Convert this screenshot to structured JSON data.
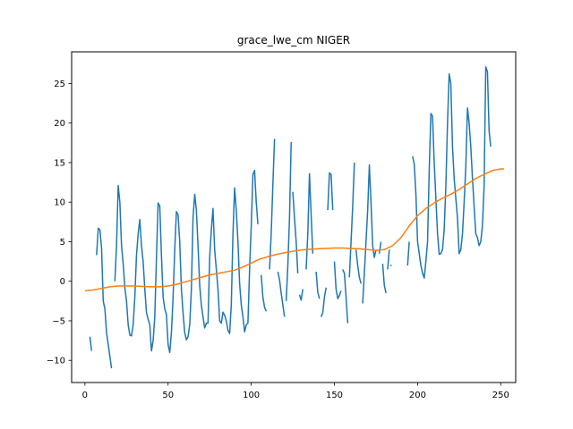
{
  "chart_data": {
    "type": "line",
    "title": "grace_lwe_cm NIGER",
    "xlabel": "",
    "ylabel": "",
    "xlim": [
      -8,
      259
    ],
    "ylim": [
      -12.8,
      29
    ],
    "xticks": [
      0,
      50,
      100,
      150,
      200,
      250
    ],
    "yticks": [
      -10,
      -5,
      0,
      5,
      10,
      15,
      20,
      25
    ],
    "grid": false,
    "legend": "none",
    "series": [
      {
        "color": "#1f77b4",
        "segments": [
          [
            [
              3,
              -7.0
            ],
            [
              4,
              -8.8
            ]
          ],
          [
            [
              7,
              3.3
            ],
            [
              8,
              6.7
            ],
            [
              9,
              6.5
            ],
            [
              10,
              4.2
            ],
            [
              11,
              -2.5
            ],
            [
              12,
              -3.5
            ],
            [
              13,
              -6.5
            ],
            [
              14,
              -8.0
            ],
            [
              15,
              -9.5
            ],
            [
              16,
              -11.0
            ]
          ],
          [
            [
              18,
              0.0
            ],
            [
              19,
              4.5
            ],
            [
              20,
              12.1
            ],
            [
              21,
              10.0
            ],
            [
              22,
              4.5
            ],
            [
              23,
              2.2
            ],
            [
              24,
              -0.8
            ],
            [
              25,
              -2.5
            ],
            [
              26,
              -5.5
            ],
            [
              27,
              -6.8
            ],
            [
              28,
              -6.9
            ],
            [
              29,
              -5.5
            ],
            [
              30,
              -2.0
            ],
            [
              31,
              3.3
            ],
            [
              32,
              6.0
            ],
            [
              33,
              7.8
            ],
            [
              34,
              4.5
            ],
            [
              35,
              2.5
            ],
            [
              36,
              -1.0
            ],
            [
              37,
              -4.0
            ],
            [
              38,
              -4.8
            ],
            [
              39,
              -5.5
            ],
            [
              40,
              -8.8
            ],
            [
              41,
              -7.5
            ],
            [
              42,
              -4.5
            ],
            [
              43,
              3.0
            ],
            [
              44,
              9.9
            ],
            [
              45,
              9.5
            ],
            [
              46,
              3.3
            ],
            [
              47,
              -2.0
            ],
            [
              48,
              -3.5
            ],
            [
              49,
              -4.2
            ],
            [
              50,
              -8.0
            ],
            [
              51,
              -9.0
            ],
            [
              52,
              -6.5
            ],
            [
              53,
              -2.0
            ],
            [
              54,
              4.0
            ],
            [
              55,
              8.8
            ],
            [
              56,
              8.4
            ],
            [
              57,
              5.0
            ],
            [
              58,
              -1.0
            ],
            [
              59,
              -4.0
            ],
            [
              60,
              -6.5
            ],
            [
              61,
              -7.4
            ],
            [
              62,
              -7.0
            ],
            [
              63,
              -5.5
            ],
            [
              64,
              -1.0
            ],
            [
              65,
              8.0
            ],
            [
              66,
              11.0
            ],
            [
              67,
              9.0
            ],
            [
              68,
              4.5
            ],
            [
              69,
              -0.5
            ],
            [
              70,
              -3.0
            ],
            [
              71,
              -4.5
            ],
            [
              72,
              -5.9
            ],
            [
              73,
              -5.3
            ],
            [
              74,
              -5.3
            ],
            [
              75,
              3.0
            ],
            [
              76,
              6.5
            ],
            [
              77,
              9.2
            ],
            [
              78,
              4.0
            ],
            [
              79,
              1.5
            ],
            [
              80,
              -1.0
            ],
            [
              81,
              -5.0
            ],
            [
              82,
              -5.3
            ],
            [
              83,
              -3.9
            ],
            [
              84,
              -4.3
            ],
            [
              85,
              -5.0
            ],
            [
              86,
              -6.2
            ],
            [
              87,
              -6.6
            ],
            [
              88,
              -3.0
            ],
            [
              89,
              6.0
            ],
            [
              90,
              11.8
            ],
            [
              91,
              9.0
            ],
            [
              92,
              5.0
            ],
            [
              93,
              -0.3
            ],
            [
              94,
              -3.0
            ],
            [
              95,
              -4.5
            ],
            [
              96,
              -6.4
            ],
            [
              97,
              -5.5
            ],
            [
              98,
              -5.3
            ],
            [
              99,
              1.5
            ],
            [
              100,
              7.0
            ],
            [
              101,
              13.5
            ],
            [
              102,
              14.0
            ],
            [
              103,
              10.0
            ],
            [
              104,
              7.2
            ]
          ],
          [
            [
              106,
              0.8
            ],
            [
              107,
              -2.0
            ],
            [
              108,
              -3.3
            ],
            [
              109,
              -3.8
            ]
          ],
          [
            [
              111,
              1.5
            ],
            [
              112,
              6.0
            ],
            [
              113,
              12.2
            ],
            [
              114,
              18.0
            ]
          ],
          [
            [
              116,
              1.2
            ],
            [
              117,
              0.2
            ],
            [
              118,
              -1.5
            ],
            [
              119,
              -3.0
            ],
            [
              120,
              -4.5
            ]
          ],
          [
            [
              121,
              -2.5
            ],
            [
              122,
              2.0
            ],
            [
              123,
              8.0
            ],
            [
              124,
              17.6
            ]
          ],
          [
            [
              125,
              11.3
            ],
            [
              126,
              8.0
            ],
            [
              127,
              5.0
            ],
            [
              128,
              1.0
            ]
          ],
          [
            [
              129,
              -1.7
            ],
            [
              130,
              -2.4
            ],
            [
              131,
              -1.0
            ]
          ],
          [
            [
              133,
              1.5
            ],
            [
              134,
              6.0
            ],
            [
              135,
              13.6
            ],
            [
              136,
              8.5
            ],
            [
              137,
              3.5
            ]
          ],
          [
            [
              139,
              1.2
            ],
            [
              140,
              -1.4
            ],
            [
              141,
              -2.2
            ]
          ],
          [
            [
              142,
              -4.5
            ],
            [
              143,
              -4.0
            ],
            [
              144,
              -2.0
            ],
            [
              145,
              -0.8
            ]
          ],
          [
            [
              146,
              9.0
            ],
            [
              147,
              13.7
            ],
            [
              148,
              13.5
            ],
            [
              149,
              9.0
            ]
          ],
          [
            [
              150,
              2.5
            ],
            [
              151,
              -1.0
            ],
            [
              152,
              -2.2
            ],
            [
              153,
              -1.8
            ],
            [
              154,
              -1.2
            ]
          ],
          [
            [
              155,
              1.5
            ],
            [
              156,
              1.0
            ],
            [
              157,
              -2.0
            ],
            [
              158,
              -5.3
            ]
          ],
          [
            [
              159,
              0.5
            ],
            [
              160,
              5.0
            ],
            [
              161,
              9.5
            ],
            [
              162,
              15.0
            ]
          ],
          [
            [
              163,
              4.0
            ],
            [
              164,
              2.0
            ],
            [
              165,
              0.5
            ],
            [
              166,
              -0.3
            ]
          ],
          [
            [
              167,
              -2.8
            ],
            [
              168,
              1.0
            ],
            [
              169,
              5.0
            ],
            [
              170,
              9.0
            ],
            [
              171,
              14.7
            ],
            [
              172,
              10.0
            ],
            [
              173,
              4.5
            ],
            [
              174,
              3.0
            ],
            [
              175,
              4.0
            ]
          ],
          [
            [
              177,
              3.5
            ],
            [
              178,
              5.0
            ]
          ],
          [
            [
              179,
              2.2
            ],
            [
              180,
              -0.5
            ],
            [
              181,
              -1.5
            ]
          ],
          [
            [
              182,
              1.5
            ],
            [
              183,
              4.0
            ]
          ],
          [
            [
              184,
              2.0
            ]
          ],
          [
            [
              194,
              2.0
            ],
            [
              195,
              5.0
            ]
          ],
          [
            [
              197,
              15.8
            ],
            [
              198,
              14.8
            ],
            [
              199,
              11.0
            ],
            [
              200,
              5.0
            ],
            [
              201,
              3.5
            ],
            [
              202,
              2.0
            ],
            [
              203,
              1.0
            ],
            [
              204,
              0.4
            ],
            [
              205,
              2.5
            ],
            [
              206,
              5.0
            ],
            [
              207,
              14.0
            ],
            [
              208,
              21.2
            ],
            [
              209,
              20.9
            ],
            [
              210,
              15.0
            ],
            [
              211,
              10.5
            ],
            [
              212,
              6.0
            ],
            [
              213,
              3.4
            ],
            [
              214,
              3.5
            ],
            [
              215,
              4.0
            ],
            [
              216,
              6.5
            ],
            [
              217,
              12.0
            ],
            [
              218,
              20.0
            ],
            [
              219,
              26.2
            ],
            [
              220,
              25.0
            ],
            [
              221,
              17.0
            ],
            [
              222,
              13.0
            ],
            [
              223,
              10.5
            ],
            [
              224,
              8.0
            ],
            [
              225,
              3.5
            ],
            [
              226,
              4.0
            ],
            [
              227,
              6.0
            ],
            [
              228,
              10.0
            ],
            [
              229,
              14.5
            ],
            [
              230,
              21.9
            ],
            [
              231,
              20.0
            ],
            [
              232,
              17.0
            ],
            [
              233,
              13.0
            ],
            [
              234,
              9.5
            ],
            [
              235,
              6.0
            ],
            [
              236,
              5.5
            ],
            [
              237,
              4.5
            ],
            [
              238,
              5.0
            ],
            [
              239,
              7.0
            ],
            [
              240,
              12.0
            ],
            [
              241,
              27.1
            ],
            [
              242,
              26.5
            ],
            [
              243,
              19.0
            ],
            [
              244,
              17.0
            ]
          ]
        ]
      },
      {
        "color": "#ff7f0e",
        "points": [
          [
            0,
            -1.2
          ],
          [
            5,
            -1.1
          ],
          [
            10,
            -0.9
          ],
          [
            15,
            -0.7
          ],
          [
            20,
            -0.6
          ],
          [
            25,
            -0.6
          ],
          [
            30,
            -0.6
          ],
          [
            35,
            -0.65
          ],
          [
            40,
            -0.7
          ],
          [
            45,
            -0.7
          ],
          [
            50,
            -0.6
          ],
          [
            55,
            -0.4
          ],
          [
            60,
            -0.1
          ],
          [
            65,
            0.2
          ],
          [
            70,
            0.5
          ],
          [
            75,
            0.8
          ],
          [
            80,
            1.0
          ],
          [
            85,
            1.2
          ],
          [
            90,
            1.4
          ],
          [
            95,
            1.8
          ],
          [
            100,
            2.3
          ],
          [
            105,
            2.8
          ],
          [
            110,
            3.1
          ],
          [
            115,
            3.4
          ],
          [
            120,
            3.6
          ],
          [
            125,
            3.8
          ],
          [
            130,
            3.95
          ],
          [
            135,
            4.05
          ],
          [
            140,
            4.1
          ],
          [
            145,
            4.15
          ],
          [
            150,
            4.2
          ],
          [
            155,
            4.2
          ],
          [
            160,
            4.15
          ],
          [
            165,
            4.1
          ],
          [
            170,
            4.0
          ],
          [
            175,
            3.9
          ],
          [
            180,
            4.0
          ],
          [
            185,
            4.5
          ],
          [
            190,
            5.5
          ],
          [
            195,
            7.0
          ],
          [
            200,
            8.3
          ],
          [
            205,
            9.2
          ],
          [
            210,
            9.9
          ],
          [
            215,
            10.5
          ],
          [
            220,
            11.0
          ],
          [
            225,
            11.6
          ],
          [
            230,
            12.3
          ],
          [
            235,
            13.0
          ],
          [
            240,
            13.5
          ],
          [
            245,
            14.0
          ],
          [
            250,
            14.2
          ],
          [
            252,
            14.2
          ]
        ]
      }
    ]
  }
}
